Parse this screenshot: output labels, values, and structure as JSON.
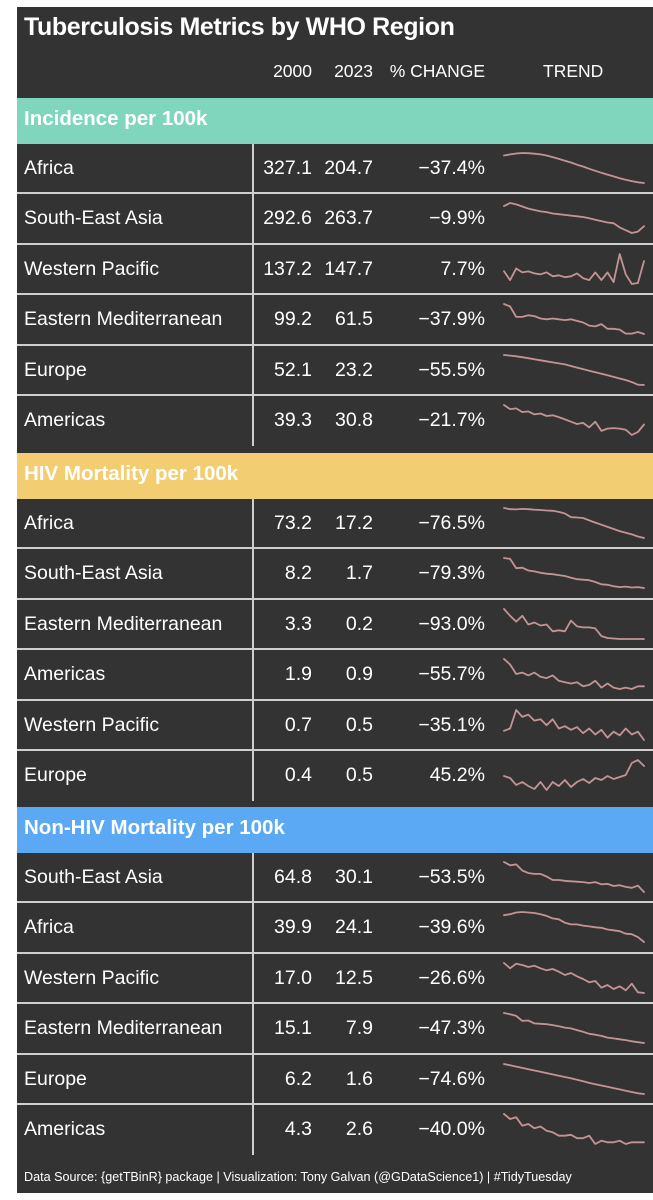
{
  "chart_data": {
    "type": "table",
    "title": "Tuberculosis Metrics by WHO Region",
    "columns": [
      "2000",
      "2023",
      "% CHANGE",
      "TREND"
    ],
    "sections": [
      {
        "name": "Incidence per 100k",
        "color": "#7fd6bd",
        "rows": [
          {
            "region": "Africa",
            "v2000": "327.1",
            "v2023": "204.7",
            "change": "−37.4%",
            "trend": [
              327.1,
              332,
              336,
              338,
              337,
              335,
              332,
              327,
              320,
              312,
              304,
              296,
              286,
              278,
              268,
              259,
              250,
              242,
              234,
              226,
              219,
              213,
              208,
              204.7
            ]
          },
          {
            "region": "South-East Asia",
            "v2000": "292.6",
            "v2023": "263.7",
            "change": "−9.9%",
            "trend": [
              292.6,
              297,
              295,
              292,
              289,
              287,
              285,
              284,
              282,
              281,
              280,
              279,
              278,
              277,
              275,
              273,
              271,
              269,
              268,
              262,
              258,
              254,
              256,
              263.7
            ]
          },
          {
            "region": "Western Pacific",
            "v2000": "137.2",
            "v2023": "147.7",
            "change": "7.7%",
            "trend": [
              137.2,
              128,
              140,
              136,
              137,
              135,
              134,
              136,
              132,
              133,
              131,
              132,
              135,
              130,
              128,
              136,
              128,
              136,
              126,
              155,
              134,
              124,
              125,
              147.7
            ]
          },
          {
            "region": "Eastern Mediterranean",
            "v2000": "99.2",
            "v2023": "61.5",
            "change": "−37.9%",
            "trend": [
              99.2,
              96,
              83,
              83,
              85,
              84,
              81,
              80,
              81,
              80,
              79,
              80,
              78,
              76,
              72,
              71,
              74,
              68,
              68,
              67,
              62,
              62,
              64,
              61.5
            ]
          },
          {
            "region": "Europe",
            "v2000": "52.1",
            "v2023": "23.2",
            "change": "−55.5%",
            "trend": [
              52.1,
              51.5,
              50.8,
              50,
              49,
              48,
              47,
              46,
              45,
              44,
              43,
              41.5,
              40,
              38.5,
              37,
              35.5,
              34,
              32.5,
              31,
              29.5,
              28,
              26,
              23.5,
              23.2
            ]
          },
          {
            "region": "Americas",
            "v2000": "39.3",
            "v2023": "30.8",
            "change": "−21.7%",
            "trend": [
              39.3,
              37.5,
              37.8,
              36.2,
              36.5,
              35.2,
              35.6,
              34.5,
              34.8,
              34,
              33,
              32,
              31,
              31.5,
              29.5,
              32,
              28,
              29,
              29.2,
              29,
              28.5,
              26.2,
              27.5,
              30.8
            ]
          }
        ]
      },
      {
        "name": "HIV Mortality per 100k",
        "color": "#f2cd71",
        "rows": [
          {
            "region": "Africa",
            "v2000": "73.2",
            "v2023": "17.2",
            "change": "−76.5%",
            "trend": [
              73.2,
              71,
              70.5,
              71.5,
              71,
              70,
              69.5,
              68.5,
              68,
              66,
              63,
              56,
              55.5,
              54.5,
              50,
              46,
              42,
              38,
              34,
              30,
              27,
              24,
              20,
              17.2
            ]
          },
          {
            "region": "South-East Asia",
            "v2000": "8.2",
            "v2023": "1.7",
            "change": "−79.3%",
            "trend": [
              8.2,
              8.0,
              6.0,
              6.1,
              5.5,
              5.3,
              5.0,
              4.8,
              4.7,
              4.5,
              4.3,
              3.9,
              3.6,
              3.5,
              3.4,
              3.0,
              2.5,
              2.4,
              2.1,
              1.9,
              2.0,
              1.8,
              1.9,
              1.7
            ]
          },
          {
            "region": "Eastern Mediterranean",
            "v2000": "3.3",
            "v2023": "0.2",
            "change": "−93.0%",
            "trend": [
              3.3,
              2.6,
              2.0,
              2.6,
              1.7,
              1.9,
              1.6,
              1.7,
              1.0,
              1.1,
              1.0,
              2.1,
              1.5,
              1.4,
              1.4,
              1.3,
              0.5,
              0.3,
              0.25,
              0.2,
              0.2,
              0.2,
              0.2,
              0.2
            ]
          },
          {
            "region": "Americas",
            "v2000": "1.9",
            "v2023": "0.9",
            "change": "−55.7%",
            "trend": [
              1.9,
              1.7,
              1.35,
              1.4,
              1.3,
              1.4,
              1.25,
              1.2,
              1.3,
              1.1,
              1.05,
              1.0,
              1.05,
              0.9,
              0.95,
              1.1,
              0.85,
              1.0,
              0.85,
              0.8,
              0.85,
              0.8,
              0.9,
              0.9
            ]
          },
          {
            "region": "Western Pacific",
            "v2000": "0.7",
            "v2023": "0.5",
            "change": "−35.1%",
            "trend": [
              0.7,
              0.75,
              1.15,
              1.0,
              1.05,
              0.92,
              0.95,
              0.82,
              0.95,
              0.75,
              0.8,
              0.72,
              0.78,
              0.65,
              0.75,
              0.62,
              0.72,
              0.55,
              0.68,
              0.6,
              0.75,
              0.62,
              0.68,
              0.5
            ]
          },
          {
            "region": "Europe",
            "v2000": "0.4",
            "v2023": "0.5",
            "change": "45.2%",
            "trend": [
              0.4,
              0.38,
              0.31,
              0.34,
              0.3,
              0.27,
              0.34,
              0.26,
              0.34,
              0.3,
              0.36,
              0.29,
              0.34,
              0.37,
              0.33,
              0.38,
              0.36,
              0.4,
              0.37,
              0.39,
              0.41,
              0.53,
              0.56,
              0.5
            ]
          }
        ]
      },
      {
        "name": "Non-HIV Mortality per 100k",
        "color": "#5ba9f5",
        "rows": [
          {
            "region": "South-East Asia",
            "v2000": "64.8",
            "v2023": "30.1",
            "change": "−53.5%",
            "trend": [
              64.8,
              61,
              62,
              55,
              52,
              51,
              51,
              48,
              44,
              44,
              43,
              42.5,
              42,
              41.5,
              40.5,
              41.5,
              39,
              39.5,
              37,
              38,
              36,
              35,
              37.5,
              30.1
            ]
          },
          {
            "region": "Africa",
            "v2000": "39.9",
            "v2023": "24.1",
            "change": "−39.6%",
            "trend": [
              39.9,
              40.5,
              41.5,
              41.8,
              41.5,
              41.2,
              40.5,
              39.5,
              38,
              37.5,
              35.5,
              34.5,
              34.5,
              33.8,
              33.3,
              32.8,
              32.5,
              31.5,
              31,
              30.5,
              29,
              28.7,
              27,
              24.1
            ]
          },
          {
            "region": "Western Pacific",
            "v2000": "17.0",
            "v2023": "12.5",
            "change": "−26.6%",
            "trend": [
              17.0,
              16.2,
              16.9,
              16.7,
              16.4,
              16.6,
              16.2,
              15.9,
              16.1,
              15.7,
              15.2,
              15.5,
              15.0,
              14.6,
              14.1,
              14.3,
              13.3,
              13.7,
              13.1,
              13.5,
              12.9,
              13.9,
              12.6,
              12.5
            ]
          },
          {
            "region": "Eastern Mediterranean",
            "v2000": "15.1",
            "v2023": "7.9",
            "change": "−47.3%",
            "trend": [
              15.1,
              14.8,
              14.4,
              13.2,
              13.3,
              12.6,
              12.5,
              12.4,
              12.2,
              11.9,
              11.6,
              11.4,
              11.0,
              10.6,
              10.1,
              9.9,
              9.6,
              9.2,
              9.0,
              8.8,
              8.6,
              8.3,
              8.1,
              7.9
            ]
          },
          {
            "region": "Europe",
            "v2000": "6.2",
            "v2023": "1.6",
            "change": "−74.6%",
            "trend": [
              6.2,
              6.0,
              5.8,
              5.6,
              5.4,
              5.2,
              5.0,
              4.8,
              4.6,
              4.4,
              4.2,
              4.0,
              3.8,
              3.55,
              3.3,
              3.1,
              2.9,
              2.7,
              2.5,
              2.3,
              2.1,
              1.9,
              1.7,
              1.6
            ]
          },
          {
            "region": "Americas",
            "v2000": "4.3",
            "v2023": "2.6",
            "change": "−40.0%",
            "trend": [
              4.3,
              4.0,
              4.1,
              3.6,
              3.7,
              3.45,
              3.55,
              3.3,
              3.2,
              3.0,
              3.0,
              3.05,
              2.85,
              2.85,
              3.0,
              2.5,
              2.7,
              2.6,
              2.6,
              2.7,
              2.5,
              2.6,
              2.6,
              2.6
            ]
          }
        ]
      }
    ],
    "footer": "Data Source: {getTBinR} package | Visualization: Tony Galvan (@GDataScience1) | #TidyTuesday"
  },
  "colors": {
    "background": "#333333",
    "trend_line": "#c49494",
    "grid": "#cfcfcf"
  }
}
